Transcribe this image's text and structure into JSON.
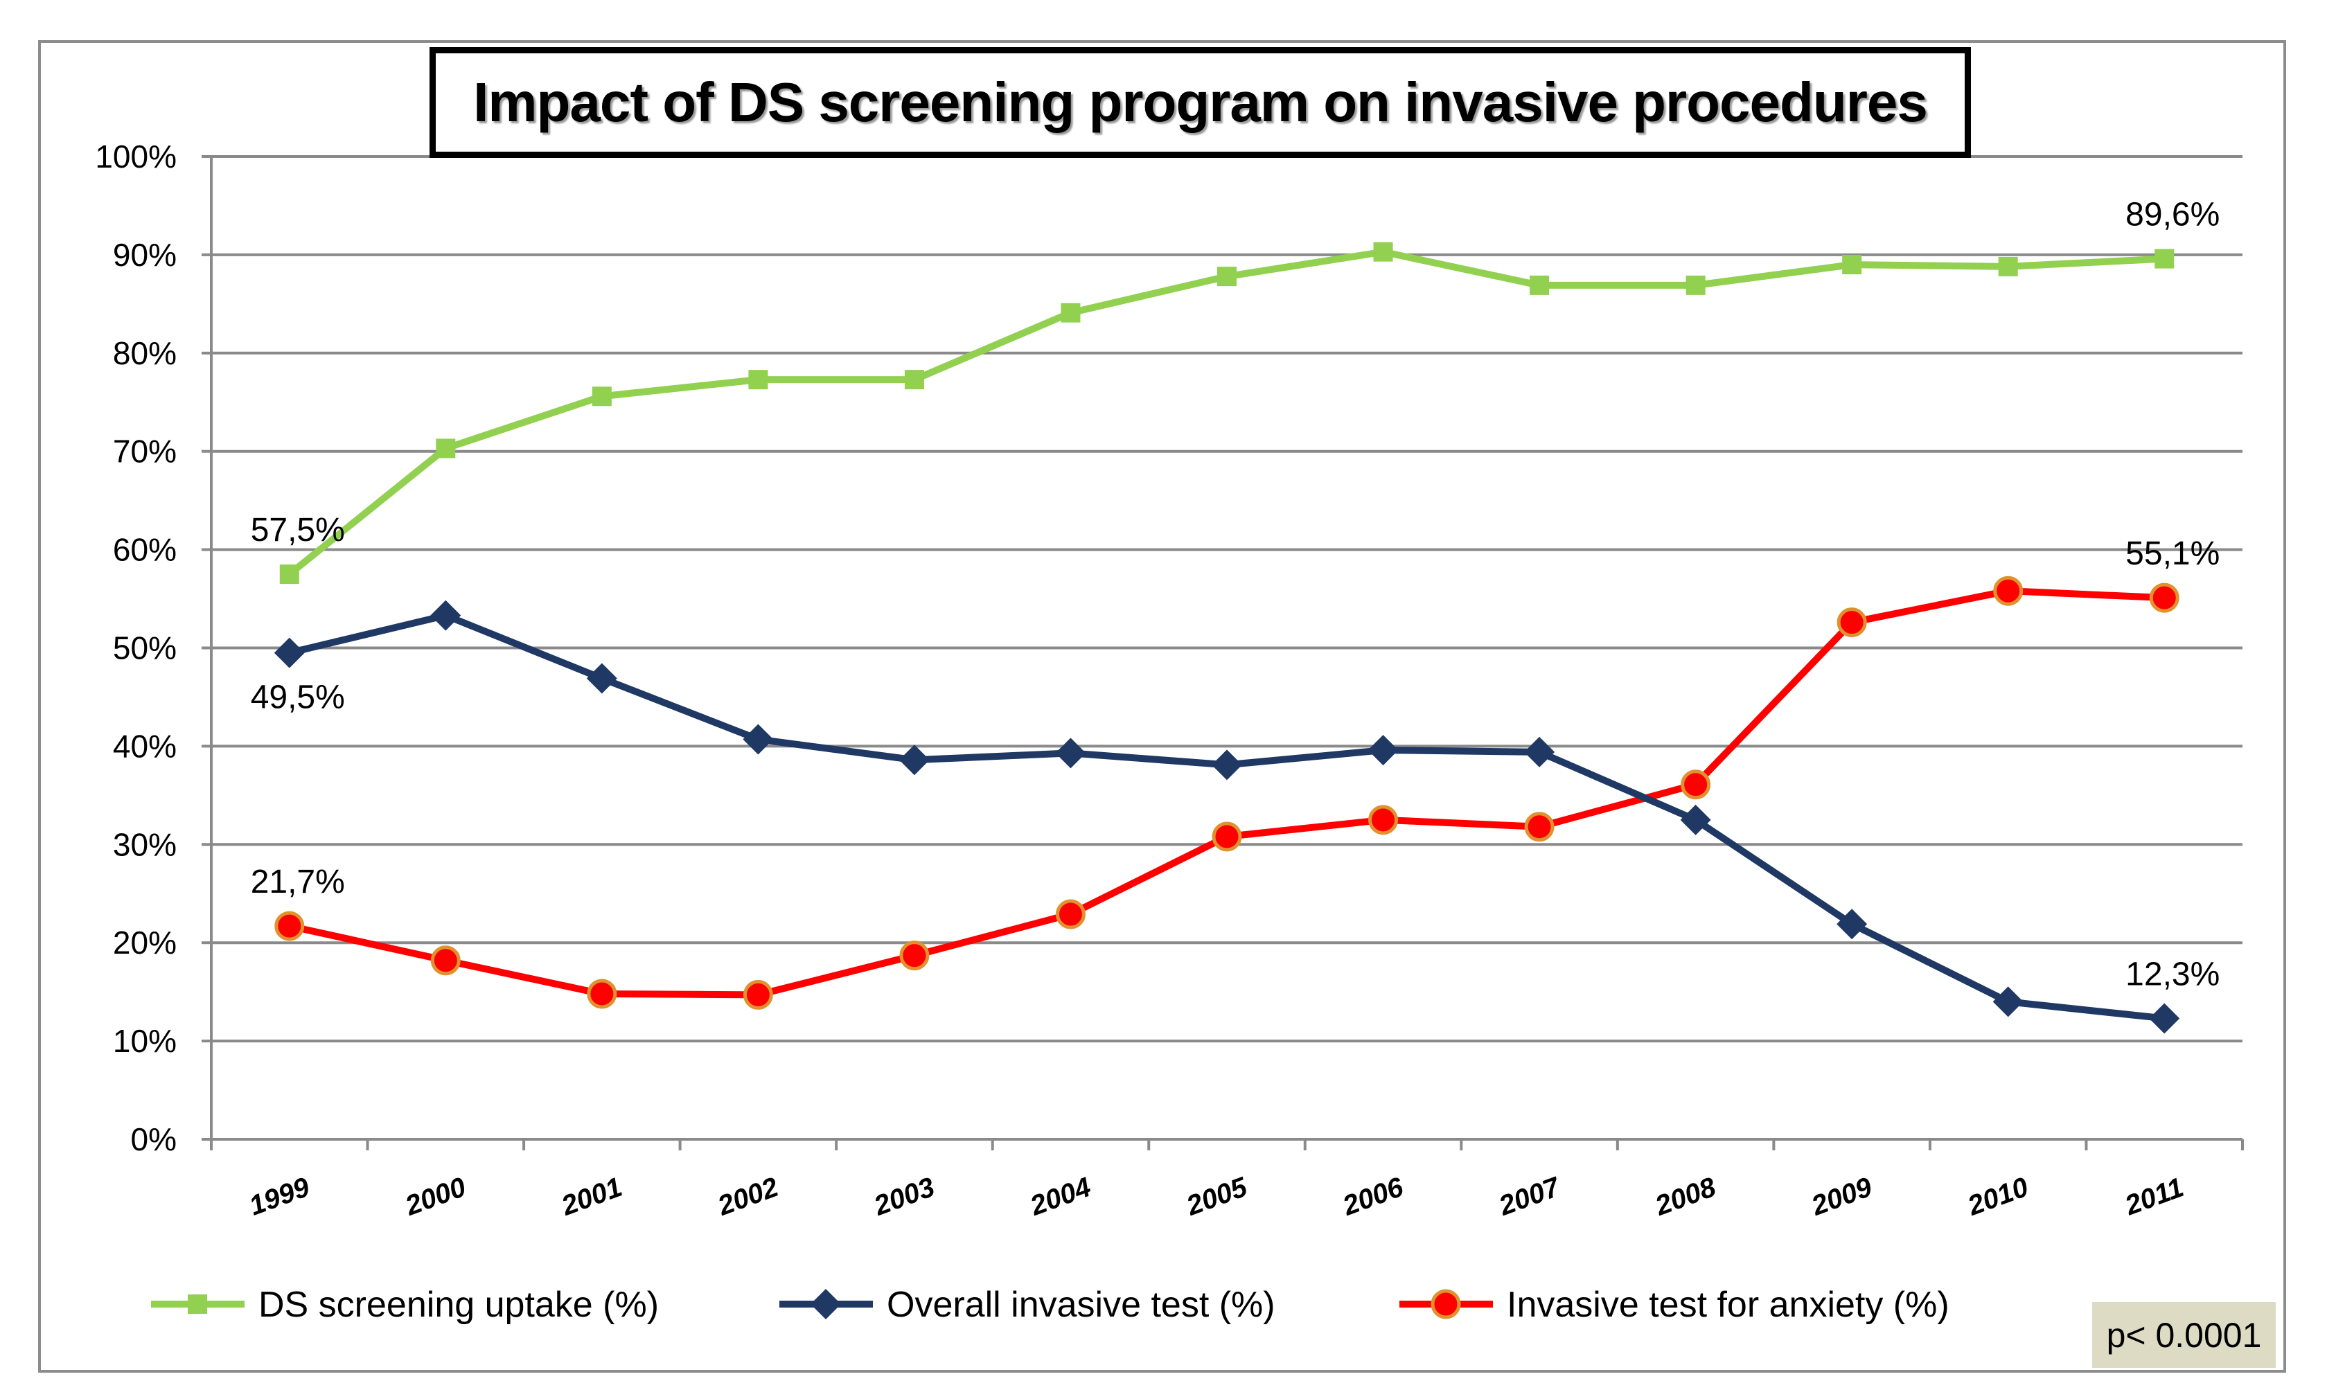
{
  "chart_data": {
    "type": "line",
    "title": "Impact of DS screening program on invasive procedures",
    "categories": [
      "1999",
      "2000",
      "2001",
      "2002",
      "2003",
      "2004",
      "2005",
      "2006",
      "2007",
      "2008",
      "2009",
      "2010",
      "2011"
    ],
    "ylim": [
      0,
      100
    ],
    "y_ticks": [
      "0%",
      "10%",
      "20%",
      "30%",
      "40%",
      "50%",
      "60%",
      "70%",
      "80%",
      "90%",
      "100%"
    ],
    "grid": true,
    "legend_position": "bottom",
    "series": [
      {
        "name": "DS screening uptake (%)",
        "color": "#92d050",
        "marker": "square",
        "values": [
          57.5,
          70.3,
          75.6,
          77.3,
          77.3,
          84.1,
          87.8,
          90.3,
          86.9,
          86.9,
          89.0,
          88.8,
          89.6
        ]
      },
      {
        "name": "Overall invasive test (%)",
        "color": "#1f3864",
        "marker": "diamond",
        "values": [
          49.5,
          53.3,
          46.9,
          40.7,
          38.6,
          39.3,
          38.1,
          39.6,
          39.4,
          32.5,
          21.9,
          14.0,
          12.3
        ]
      },
      {
        "name": "Invasive test for anxiety (%)",
        "color": "#ff0000",
        "marker": "circle",
        "values": [
          21.7,
          18.2,
          14.8,
          14.7,
          18.7,
          22.9,
          30.8,
          32.5,
          31.8,
          36.1,
          52.6,
          55.8,
          55.1
        ]
      }
    ],
    "annotations": [
      {
        "series": 0,
        "index": 0,
        "text": "57,5%",
        "placement": "above"
      },
      {
        "series": 0,
        "index": 12,
        "text": "89,6%",
        "placement": "above"
      },
      {
        "series": 1,
        "index": 0,
        "text": "49,5%",
        "placement": "below"
      },
      {
        "series": 1,
        "index": 12,
        "text": "12,3%",
        "placement": "above"
      },
      {
        "series": 2,
        "index": 0,
        "text": "21,7%",
        "placement": "above"
      },
      {
        "series": 2,
        "index": 12,
        "text": "55,1%",
        "placement": "above"
      }
    ],
    "note": "p< 0.0001"
  }
}
